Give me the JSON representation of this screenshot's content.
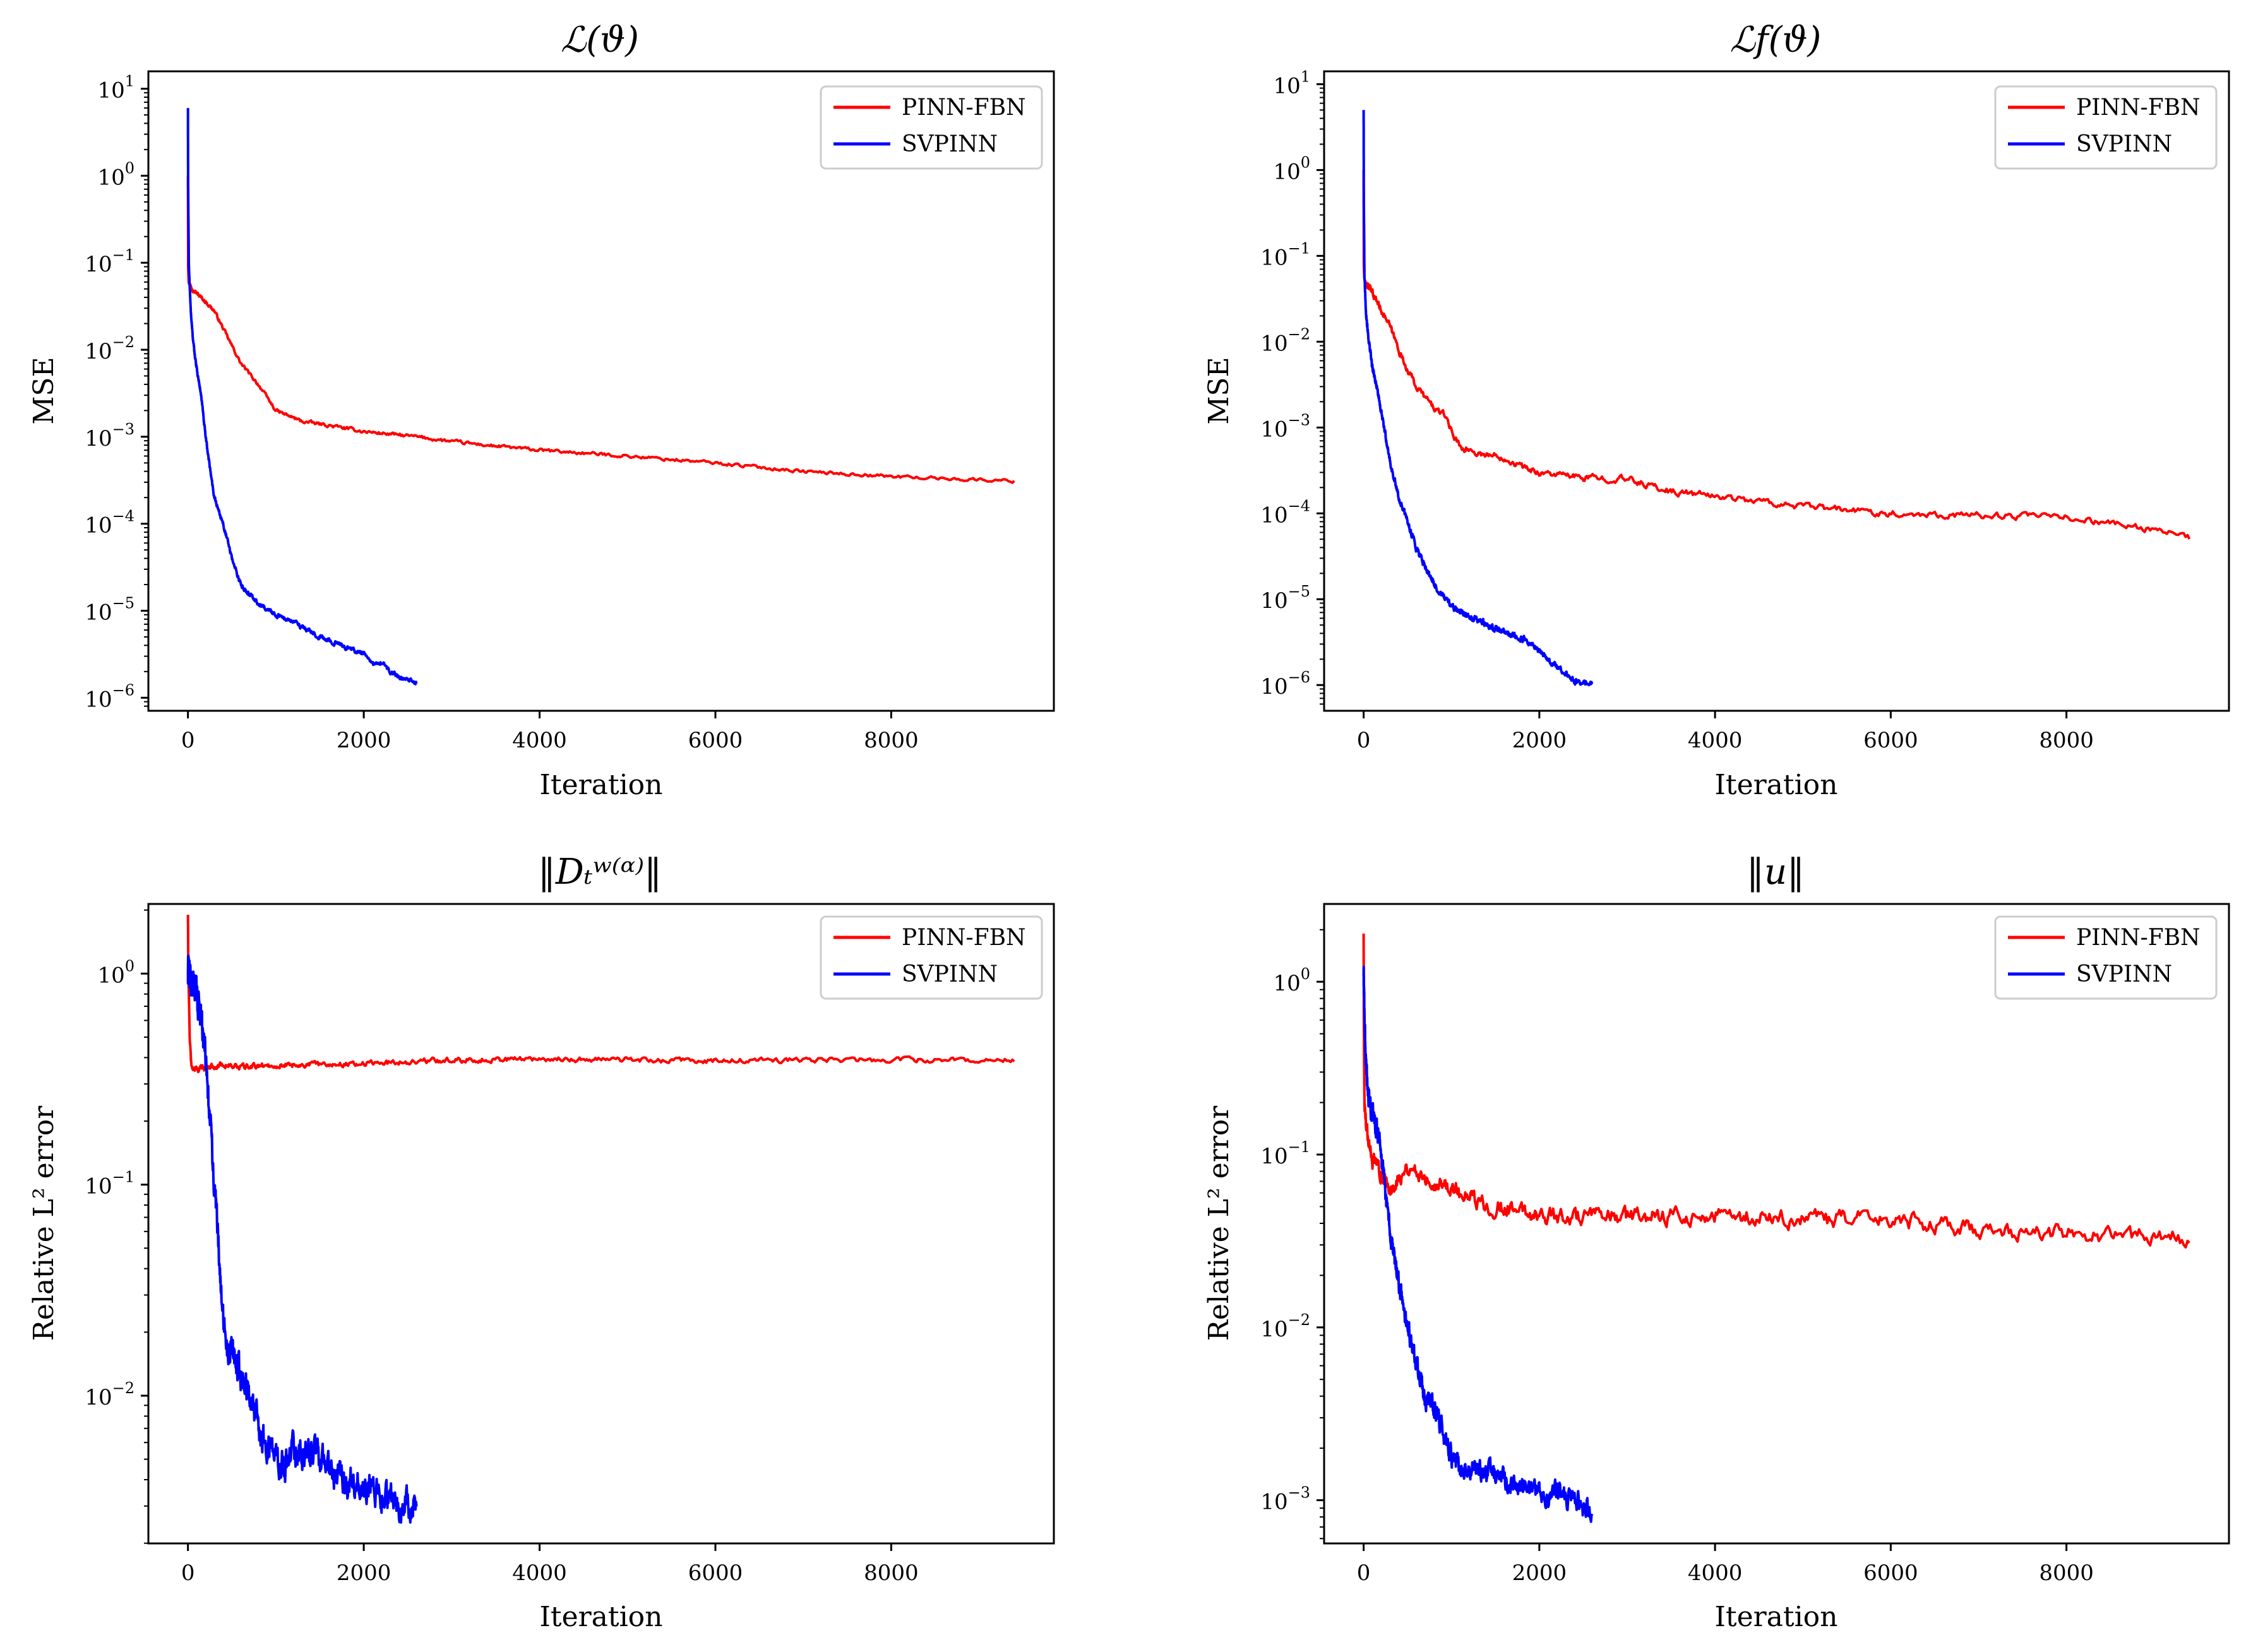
{
  "colors": {
    "red": "#ff0000",
    "blue": "#0000ff"
  },
  "chart_data": [
    {
      "type": "line",
      "title": "ℒ(ϑ)",
      "xlabel": "Iteration",
      "ylabel": "MSE",
      "yscale": "log",
      "xlim": [
        -450,
        9850
      ],
      "ylim_exp": [
        -6.15,
        1.2
      ],
      "xticks": [
        0,
        2000,
        4000,
        6000,
        8000
      ],
      "xtick_labels": [
        "0",
        "2000",
        "4000",
        "6000",
        "8000"
      ],
      "yticks_exp": [
        1,
        0,
        -1,
        -2,
        -3,
        -4,
        -5,
        -6
      ],
      "ytick_labels": [
        "10",
        "10",
        "10",
        "10",
        "10",
        "10",
        "10",
        "10"
      ],
      "ytick_exps": [
        "1",
        "0",
        "−1",
        "−2",
        "−3",
        "−4",
        "−5",
        "−6"
      ],
      "legend": {
        "position": "top-right",
        "entries": [
          "PINN-FBN",
          "SVPINN"
        ]
      },
      "series": [
        {
          "name": "PINN-FBN",
          "color": "#ff0000",
          "noise": 0.015,
          "x": [
            0,
            2,
            8,
            50,
            150,
            300,
            450,
            600,
            800,
            1000,
            1300,
            1600,
            2000,
            2600,
            3000,
            3500,
            4000,
            5000,
            6000,
            7000,
            8000,
            9000,
            9400
          ],
          "y": [
            1,
            0.1,
            0.06,
            0.05,
            0.04,
            0.028,
            0.014,
            0.007,
            0.004,
            0.002,
            0.0015,
            0.00135,
            0.00115,
            0.001,
            0.00088,
            0.00078,
            0.0007,
            0.0006,
            0.0005,
            0.0004,
            0.00035,
            0.00032,
            0.00031
          ]
        },
        {
          "name": "SVPINN",
          "color": "#0000ff",
          "noise": 0.02,
          "x": [
            0,
            2,
            10,
            30,
            60,
            100,
            150,
            200,
            300,
            400,
            500,
            600,
            800,
            1000,
            1200,
            1500,
            1800,
            2000,
            2100,
            2200,
            2300,
            2400,
            2600
          ],
          "y": [
            6,
            0.8,
            0.1,
            0.03,
            0.012,
            0.006,
            0.003,
            0.001,
            0.0002,
            0.0001,
            4e-05,
            2e-05,
            1.2e-05,
            9e-06,
            7.5e-06,
            5e-06,
            3.8e-06,
            3.2e-06,
            2.4e-06,
            2.6e-06,
            2e-06,
            1.7e-06,
            1.5e-06
          ]
        }
      ]
    },
    {
      "type": "line",
      "title": "ℒf(ϑ)",
      "xlabel": "Iteration",
      "ylabel": "MSE",
      "yscale": "log",
      "xlim": [
        -450,
        9850
      ],
      "ylim_exp": [
        -6.3,
        1.15
      ],
      "xticks": [
        0,
        2000,
        4000,
        6000,
        8000
      ],
      "xtick_labels": [
        "0",
        "2000",
        "4000",
        "6000",
        "8000"
      ],
      "yticks_exp": [
        1,
        0,
        -1,
        -2,
        -3,
        -4,
        -5,
        -6
      ],
      "ytick_labels": [
        "10",
        "10",
        "10",
        "10",
        "10",
        "10",
        "10",
        "10"
      ],
      "ytick_exps": [
        "1",
        "0",
        "−1",
        "−2",
        "−3",
        "−4",
        "−5",
        "−6"
      ],
      "legend": {
        "position": "top-right",
        "entries": [
          "PINN-FBN",
          "SVPINN"
        ]
      },
      "series": [
        {
          "name": "PINN-FBN",
          "color": "#ff0000",
          "noise": 0.03,
          "x": [
            0,
            2,
            8,
            50,
            150,
            300,
            450,
            600,
            800,
            950,
            1000,
            1100,
            1300,
            1600,
            1800,
            2000,
            2500,
            3000,
            3500,
            4000,
            5000,
            6000,
            7000,
            8000,
            9000,
            9400
          ],
          "y": [
            1,
            0.08,
            0.05,
            0.045,
            0.03,
            0.015,
            0.006,
            0.003,
            0.0017,
            0.0013,
            0.0009,
            0.0006,
            0.0005,
            0.00045,
            0.00035,
            0.0003,
            0.00026,
            0.00025,
            0.00018,
            0.00016,
            0.00012,
            0.0001,
            9.5e-05,
            9e-05,
            6.5e-05,
            5.2e-05
          ]
        },
        {
          "name": "SVPINN",
          "color": "#0000ff",
          "noise": 0.03,
          "x": [
            0,
            2,
            10,
            30,
            60,
            100,
            150,
            200,
            250,
            300,
            400,
            500,
            600,
            800,
            1000,
            1200,
            1500,
            1800,
            2000,
            2200,
            2400,
            2600
          ],
          "y": [
            5,
            0.5,
            0.05,
            0.02,
            0.01,
            0.005,
            0.003,
            0.0015,
            0.0008,
            0.0004,
            0.00015,
            8e-05,
            4e-05,
            1.5e-05,
            8e-06,
            6.5e-06,
            4.5e-06,
            3.5e-06,
            2.5e-06,
            1.6e-06,
            1.1e-06,
            1.05e-06
          ]
        }
      ]
    },
    {
      "type": "line",
      "title": "‖Dₜʷ⁽ᵅ⁾‖",
      "xlabel": "Iteration",
      "ylabel": "Relative L² error",
      "yscale": "log",
      "xlim": [
        -450,
        9850
      ],
      "ylim_exp": [
        -2.7,
        0.33
      ],
      "xticks": [
        0,
        2000,
        4000,
        6000,
        8000
      ],
      "xtick_labels": [
        "0",
        "2000",
        "4000",
        "6000",
        "8000"
      ],
      "yticks_exp": [
        0,
        -1,
        -2
      ],
      "ytick_labels": [
        "10",
        "10",
        "10"
      ],
      "ytick_exps": [
        "0",
        "−1",
        "−2"
      ],
      "legend": {
        "position": "top-right",
        "entries": [
          "PINN-FBN",
          "SVPINN"
        ]
      },
      "series": [
        {
          "name": "PINN-FBN",
          "color": "#ff0000",
          "noise": 0.01,
          "x": [
            0,
            5,
            20,
            40,
            80,
            200,
            400,
            600,
            800,
            1200,
            2000,
            3000,
            4000,
            5000,
            6000,
            7000,
            8000,
            9400
          ],
          "y": [
            1.9,
            1.0,
            0.5,
            0.36,
            0.35,
            0.36,
            0.37,
            0.36,
            0.365,
            0.37,
            0.375,
            0.39,
            0.395,
            0.39,
            0.385,
            0.39,
            0.39,
            0.39
          ]
        },
        {
          "name": "SVPINN",
          "color": "#0000ff",
          "noise": 0.06,
          "x": [
            0,
            50,
            100,
            150,
            200,
            250,
            300,
            350,
            400,
            450,
            500,
            600,
            700,
            800,
            900,
            1000,
            1100,
            1200,
            1400,
            1600,
            1800,
            2000,
            2200,
            2400,
            2600
          ],
          "y": [
            1.0,
            0.9,
            0.8,
            0.6,
            0.4,
            0.2,
            0.1,
            0.05,
            0.025,
            0.016,
            0.016,
            0.013,
            0.01,
            0.007,
            0.006,
            0.005,
            0.0045,
            0.0055,
            0.0055,
            0.0045,
            0.004,
            0.0038,
            0.0035,
            0.003,
            0.0031
          ]
        }
      ]
    },
    {
      "type": "line",
      "title": "‖u‖",
      "xlabel": "Iteration",
      "ylabel": "Relative L² error",
      "yscale": "log",
      "xlim": [
        -450,
        9850
      ],
      "ylim_exp": [
        -3.25,
        0.45
      ],
      "xticks": [
        0,
        2000,
        4000,
        6000,
        8000
      ],
      "xtick_labels": [
        "0",
        "2000",
        "4000",
        "6000",
        "8000"
      ],
      "yticks_exp": [
        0,
        -1,
        -2,
        -3
      ],
      "ytick_labels": [
        "10",
        "10",
        "10",
        "10"
      ],
      "ytick_exps": [
        "0",
        "−1",
        "−2",
        "−3"
      ],
      "legend": {
        "position": "top-right",
        "entries": [
          "PINN-FBN",
          "SVPINN"
        ]
      },
      "series": [
        {
          "name": "PINN-FBN",
          "color": "#ff0000",
          "noise": 0.04,
          "x": [
            0,
            3,
            10,
            50,
            100,
            200,
            300,
            400,
            500,
            600,
            700,
            800,
            1000,
            1200,
            1500,
            2000,
            2500,
            3000,
            4000,
            5000,
            6000,
            7000,
            8000,
            9400
          ],
          "y": [
            1.9,
            0.5,
            0.2,
            0.12,
            0.09,
            0.08,
            0.06,
            0.075,
            0.085,
            0.08,
            0.075,
            0.07,
            0.065,
            0.055,
            0.05,
            0.045,
            0.043,
            0.044,
            0.044,
            0.042,
            0.042,
            0.037,
            0.035,
            0.033
          ]
        },
        {
          "name": "SVPINN",
          "color": "#0000ff",
          "noise": 0.05,
          "x": [
            0,
            20,
            50,
            100,
            150,
            200,
            250,
            300,
            350,
            400,
            500,
            600,
            700,
            800,
            900,
            1000,
            1100,
            1200,
            1400,
            1600,
            1800,
            2000,
            2200,
            2400,
            2500,
            2600
          ],
          "y": [
            1.1,
            0.4,
            0.22,
            0.18,
            0.15,
            0.1,
            0.06,
            0.035,
            0.025,
            0.018,
            0.01,
            0.006,
            0.004,
            0.0035,
            0.0025,
            0.0018,
            0.0015,
            0.0015,
            0.0015,
            0.0013,
            0.0012,
            0.0011,
            0.0011,
            0.001,
            0.0009,
            0.00088
          ]
        }
      ]
    }
  ]
}
